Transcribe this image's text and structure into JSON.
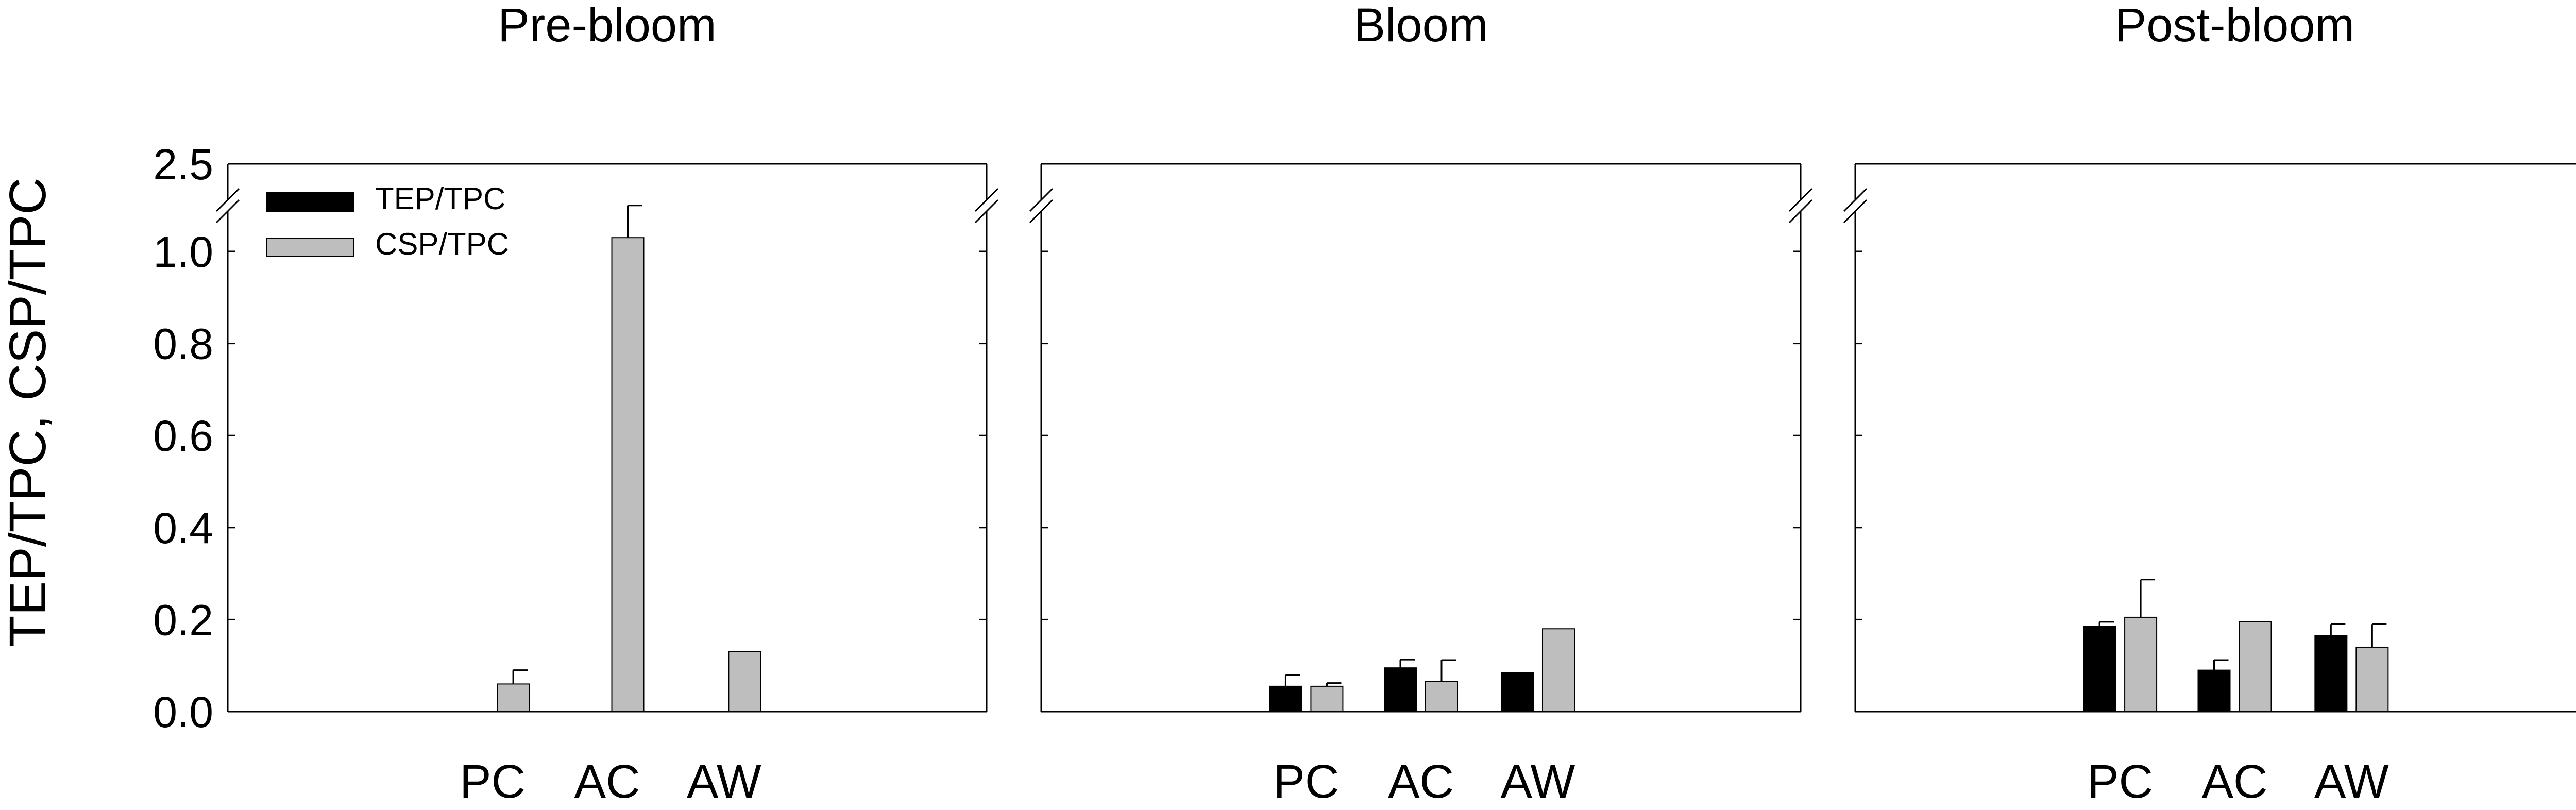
{
  "chart_data": [
    {
      "type": "bar",
      "title": "Pre-bloom",
      "ylabel": "TEP/TPC, CSP/TPC",
      "xlabel": "",
      "categories": [
        "PC",
        "AC",
        "AW"
      ],
      "series": [
        {
          "name": "TEP/TPC",
          "color": "#000000",
          "values": [
            0,
            0,
            0
          ],
          "errors": [
            0,
            0,
            0
          ]
        },
        {
          "name": "CSP/TPC",
          "color": "#bebebe",
          "values": [
            0.06,
            1.03,
            0.13
          ],
          "errors": [
            0.03,
            0.07,
            0
          ]
        }
      ],
      "ylim": [
        0,
        2.5
      ],
      "axis_break": [
        1.1,
        2.45
      ],
      "yticks": [
        "0.0",
        "0.2",
        "0.4",
        "0.6",
        "0.8",
        "1.0",
        "2.5"
      ],
      "legend": {
        "position": "top-left",
        "entries": [
          "TEP/TPC",
          "CSP/TPC"
        ]
      },
      "grid": false
    },
    {
      "type": "bar",
      "title": "Bloom",
      "ylabel": "",
      "xlabel": "",
      "categories": [
        "PC",
        "AC",
        "AW"
      ],
      "series": [
        {
          "name": "TEP/TPC",
          "color": "#000000",
          "values": [
            0.055,
            0.095,
            0.085
          ],
          "errors": [
            0.025,
            0.018,
            0
          ]
        },
        {
          "name": "CSP/TPC",
          "color": "#bebebe",
          "values": [
            0.055,
            0.065,
            0.18
          ],
          "errors": [
            0.007,
            0.047,
            0
          ]
        }
      ],
      "ylim": [
        0,
        2.5
      ],
      "axis_break": [
        1.1,
        2.45
      ],
      "grid": false
    },
    {
      "type": "bar",
      "title": "Post-bloom",
      "ylabel": "",
      "xlabel": "",
      "categories": [
        "PC",
        "AC",
        "AW"
      ],
      "series": [
        {
          "name": "TEP/TPC",
          "color": "#000000",
          "values": [
            0.185,
            0.09,
            0.165
          ],
          "errors": [
            0.01,
            0.022,
            0.025
          ]
        },
        {
          "name": "CSP/TPC",
          "color": "#bebebe",
          "values": [
            0.205,
            0.195,
            0.14
          ],
          "errors": [
            0.082,
            0,
            0.05
          ]
        }
      ],
      "ylim": [
        0,
        2.5
      ],
      "axis_break": [
        1.1,
        2.45
      ],
      "grid": false
    }
  ]
}
